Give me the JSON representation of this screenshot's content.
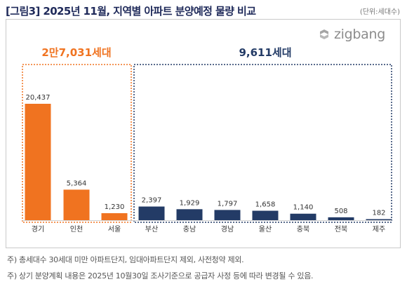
{
  "header": {
    "title": "[그림3] 2025년 11월, 지역별 아파트 분양예정 물량 비교",
    "unit": "(단위:세대수)"
  },
  "logo": {
    "text": "zigbang",
    "icon": "zigbang-logo-icon"
  },
  "chart_data": {
    "type": "bar",
    "categories": [
      "경기",
      "인천",
      "서울",
      "부산",
      "충남",
      "경남",
      "울산",
      "충북",
      "전북",
      "제주"
    ],
    "values": [
      20437,
      5364,
      1230,
      2397,
      1929,
      1797,
      1658,
      1140,
      508,
      182
    ],
    "value_labels": [
      "20,437",
      "5,364",
      "1,230",
      "2,397",
      "1,929",
      "1,797",
      "1,658",
      "1,140",
      "508",
      "182"
    ],
    "groups": [
      {
        "label": "2만7,031세대",
        "start": 0,
        "end": 2,
        "color": "#f07320"
      },
      {
        "label": "9,611세대",
        "start": 3,
        "end": 9,
        "color": "#233b66"
      }
    ],
    "ylim": [
      0,
      22000
    ],
    "grid": false
  },
  "notes": [
    "주) 총세대수 30세대 미만 아파트단지, 임대아파트단지 제외, 사전청약 제외.",
    "주) 상기 분양계획 내용은 2025년 10월30일 조사기준으로 공급자 사정 등에 따라 변경될 수 있음."
  ]
}
